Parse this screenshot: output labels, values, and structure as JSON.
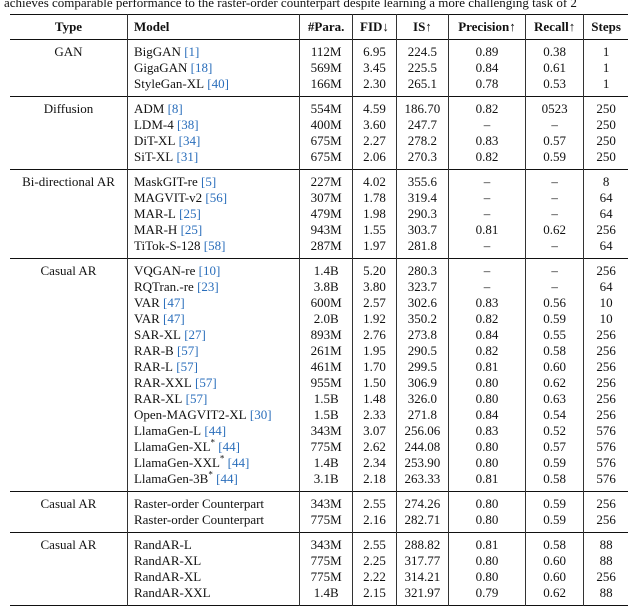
{
  "caption_fragment": "achieves comparable performance to the raster-order counterpart despite learning a more challenging task of 2",
  "header": [
    "Type",
    "Model",
    "#Para.",
    "FID↓",
    "IS↑",
    "Precision↑",
    "Recall↑",
    "Steps"
  ],
  "groups": [
    {
      "type": "GAN",
      "rows": [
        {
          "model": "BigGAN",
          "cite": "[1]",
          "cells": [
            "112M",
            "6.95",
            "224.5",
            "0.89",
            "0.38",
            "1"
          ]
        },
        {
          "model": "GigaGAN",
          "cite": "[18]",
          "cells": [
            "569M",
            "3.45",
            "225.5",
            "0.84",
            "0.61",
            "1"
          ]
        },
        {
          "model": "StyleGan-XL",
          "cite": "[40]",
          "cells": [
            "166M",
            "2.30",
            "265.1",
            "0.78",
            "0.53",
            "1"
          ]
        }
      ]
    },
    {
      "type": "Diffusion",
      "rows": [
        {
          "model": "ADM",
          "cite": "[8]",
          "cells": [
            "554M",
            "4.59",
            "186.70",
            "0.82",
            "0523",
            "250"
          ]
        },
        {
          "model": "LDM-4",
          "cite": "[38]",
          "cells": [
            "400M",
            "3.60",
            "247.7",
            "–",
            "–",
            "250"
          ]
        },
        {
          "model": "DiT-XL",
          "cite": "[34]",
          "cells": [
            "675M",
            "2.27",
            "278.2",
            "0.83",
            "0.57",
            "250"
          ]
        },
        {
          "model": "SiT-XL",
          "cite": "[31]",
          "cells": [
            "675M",
            "2.06",
            "270.3",
            "0.82",
            "0.59",
            "250"
          ]
        }
      ]
    },
    {
      "type": "Bi-directional AR",
      "rows": [
        {
          "model": "MaskGIT-re",
          "cite": "[5]",
          "cells": [
            "227M",
            "4.02",
            "355.6",
            "–",
            "–",
            "8"
          ]
        },
        {
          "model": "MAGVIT-v2",
          "cite": "[56]",
          "cells": [
            "307M",
            "1.78",
            "319.4",
            "–",
            "–",
            "64"
          ]
        },
        {
          "model": "MAR-L",
          "cite": "[25]",
          "cells": [
            "479M",
            "1.98",
            "290.3",
            "–",
            "–",
            "64"
          ]
        },
        {
          "model": "MAR-H",
          "cite": "[25]",
          "cells": [
            "943M",
            "1.55",
            "303.7",
            "0.81",
            "0.62",
            "256"
          ]
        },
        {
          "model": "TiTok-S-128",
          "cite": "[58]",
          "cells": [
            "287M",
            "1.97",
            "281.8",
            "–",
            "–",
            "64"
          ]
        }
      ]
    },
    {
      "type": "Casual AR",
      "rows": [
        {
          "model": "VQGAN-re",
          "cite": "[10]",
          "cells": [
            "1.4B",
            "5.20",
            "280.3",
            "–",
            "–",
            "256"
          ]
        },
        {
          "model": "RQTran.-re",
          "cite": "[23]",
          "cells": [
            "3.8B",
            "3.80",
            "323.7",
            "–",
            "–",
            "64"
          ]
        },
        {
          "model": "VAR",
          "cite": "[47]",
          "cells": [
            "600M",
            "2.57",
            "302.6",
            "0.83",
            "0.56",
            "10"
          ]
        },
        {
          "model": "VAR",
          "cite": "[47]",
          "cells": [
            "2.0B",
            "1.92",
            "350.2",
            "0.82",
            "0.59",
            "10"
          ]
        },
        {
          "model": "SAR-XL",
          "cite": "[27]",
          "cells": [
            "893M",
            "2.76",
            "273.8",
            "0.84",
            "0.55",
            "256"
          ]
        },
        {
          "model": "RAR-B",
          "cite": "[57]",
          "cells": [
            "261M",
            "1.95",
            "290.5",
            "0.82",
            "0.58",
            "256"
          ]
        },
        {
          "model": "RAR-L",
          "cite": "[57]",
          "cells": [
            "461M",
            "1.70",
            "299.5",
            "0.81",
            "0.60",
            "256"
          ]
        },
        {
          "model": "RAR-XXL",
          "cite": "[57]",
          "cells": [
            "955M",
            "1.50",
            "306.9",
            "0.80",
            "0.62",
            "256"
          ]
        },
        {
          "model": "RAR-XL",
          "cite": "[57]",
          "cells": [
            "1.5B",
            "1.48",
            "326.0",
            "0.80",
            "0.63",
            "256"
          ]
        },
        {
          "model": "Open-MAGVIT2-XL",
          "cite": "[30]",
          "cells": [
            "1.5B",
            "2.33",
            "271.8",
            "0.84",
            "0.54",
            "256"
          ]
        },
        {
          "model": "LlamaGen-L",
          "cite": "[44]",
          "cells": [
            "343M",
            "3.07",
            "256.06",
            "0.83",
            "0.52",
            "576"
          ]
        },
        {
          "model": "LlamaGen-XL",
          "sup": "*",
          "cite": "[44]",
          "cells": [
            "775M",
            "2.62",
            "244.08",
            "0.80",
            "0.57",
            "576"
          ]
        },
        {
          "model": "LlamaGen-XXL",
          "sup": "*",
          "cite": "[44]",
          "cells": [
            "1.4B",
            "2.34",
            "253.90",
            "0.80",
            "0.59",
            "576"
          ]
        },
        {
          "model": "LlamaGen-3B",
          "sup": "*",
          "cite": "[44]",
          "cells": [
            "3.1B",
            "2.18",
            "263.33",
            "0.81",
            "0.58",
            "576"
          ]
        }
      ]
    },
    {
      "type": "Casual AR",
      "rows": [
        {
          "model": "Raster-order Counterpart",
          "cells": [
            "343M",
            "2.55",
            "274.26",
            "0.80",
            "0.59",
            "256"
          ]
        },
        {
          "model": "Raster-order Counterpart",
          "cells": [
            "775M",
            "2.16",
            "282.71",
            "0.80",
            "0.59",
            "256"
          ]
        }
      ]
    },
    {
      "type": "Casual AR",
      "rows": [
        {
          "model": "RandAR-L",
          "cells": [
            "343M",
            "2.55",
            "288.82",
            "0.81",
            "0.58",
            "88"
          ]
        },
        {
          "model": "RandAR-XL",
          "cells": [
            "775M",
            "2.25",
            "317.77",
            "0.80",
            "0.60",
            "88"
          ]
        },
        {
          "model": "RandAR-XL",
          "cells": [
            "775M",
            "2.22",
            "314.21",
            "0.80",
            "0.60",
            "256"
          ]
        },
        {
          "model": "RandAR-XXL",
          "cells": [
            "1.4B",
            "2.15",
            "321.97",
            "0.79",
            "0.62",
            "88"
          ]
        }
      ]
    }
  ]
}
